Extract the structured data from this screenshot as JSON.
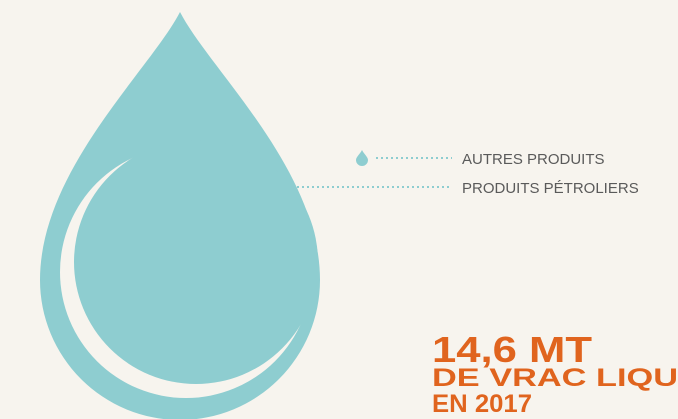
{
  "legend": {
    "items": [
      "AUTRES PRODUITS",
      "PRODUITS PÉTROLIERS"
    ]
  },
  "headline": {
    "value": "14,6 MT",
    "line1": "DE VRAC LIQU",
    "line2": "EN 2017"
  }
}
